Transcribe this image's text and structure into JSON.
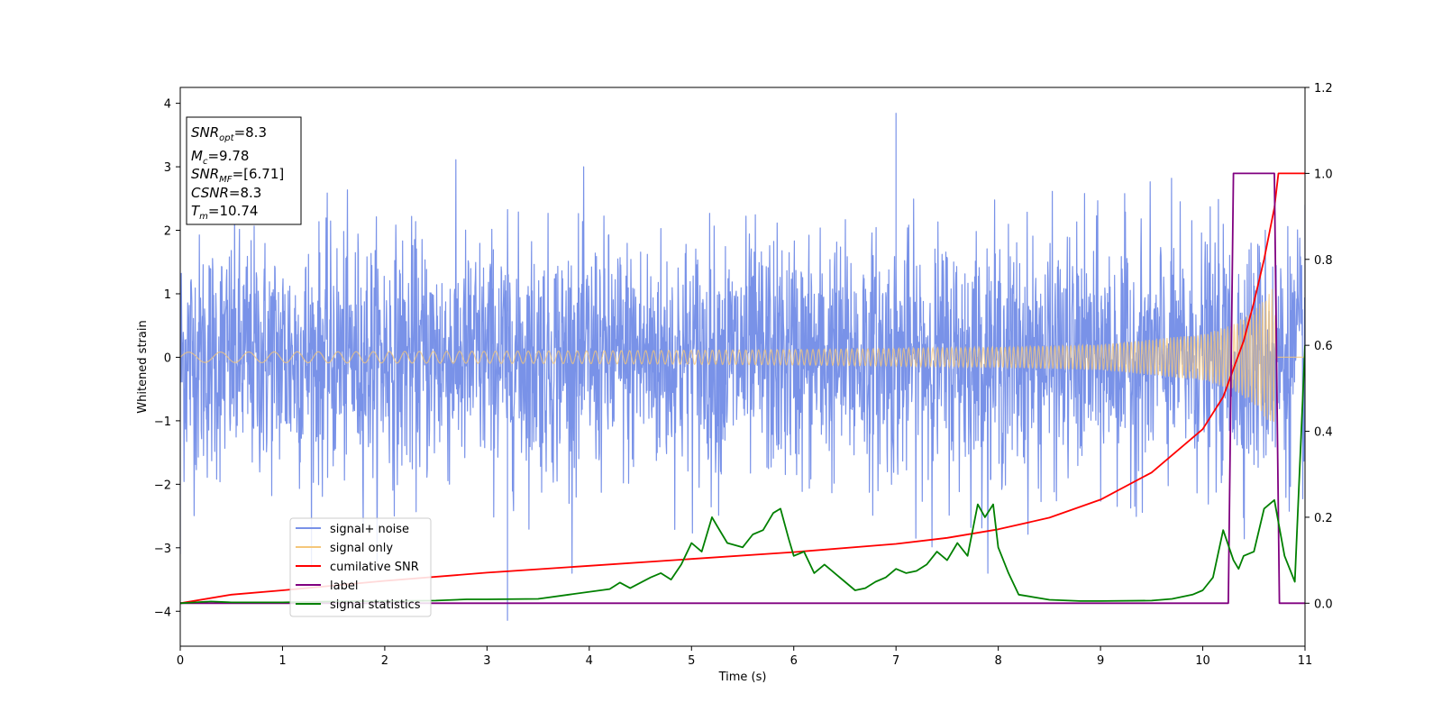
{
  "chart_data": {
    "type": "line",
    "xlabel": "Time (s)",
    "ylabel": "Whitened strain",
    "xlim": [
      0,
      11
    ],
    "ylim": [
      -4.55,
      4.25
    ],
    "y2lim": [
      -0.1,
      1.2
    ],
    "x_ticks": [
      "0",
      "1",
      "2",
      "3",
      "4",
      "5",
      "6",
      "7",
      "8",
      "9",
      "10",
      "11"
    ],
    "y_ticks": [
      "4",
      "3",
      "2",
      "1",
      "0",
      "−1",
      "−2",
      "−3",
      "−4"
    ],
    "y2_ticks": [
      "1.2",
      "1.0",
      "0.8",
      "0.6",
      "0.4",
      "0.2",
      "0.0"
    ],
    "legend_placement": "lower-left",
    "info_box": [
      {
        "main": "SNR",
        "sub": "opt",
        "rest": "=8.3"
      },
      {
        "main": "M",
        "sub": "c",
        "rest": "=9.78"
      },
      {
        "main": "SNR",
        "sub": "MF",
        "rest": "=[6.71]"
      },
      {
        "main": "CSNR",
        "sub": "",
        "rest": "=8.3"
      },
      {
        "main": "T",
        "sub": "m",
        "rest": "=10.74"
      }
    ],
    "series": [
      {
        "name": "signal+ noise",
        "color": "#7992e8",
        "axis": "left",
        "description_points": {
          "x": [
            0,
            3.2,
            7.0,
            11
          ],
          "y": [
            -3.1,
            -4.15,
            3.85,
            2.4
          ]
        }
      },
      {
        "name": "signal only",
        "color": "#f5c77a",
        "axis": "left",
        "envelope": {
          "x": [
            0,
            4,
            6,
            8,
            9,
            10,
            10.3,
            10.5,
            10.7,
            10.72,
            11
          ],
          "amp": [
            0.04,
            0.05,
            0.06,
            0.08,
            0.1,
            0.18,
            0.26,
            0.37,
            0.56,
            0.0,
            0.0
          ]
        }
      },
      {
        "name": "cumilative SNR",
        "color": "#ff0000",
        "axis": "right",
        "x": [
          0,
          0.5,
          1,
          2,
          3,
          4,
          5,
          6,
          7,
          7.5,
          8,
          8.5,
          9,
          9.5,
          10,
          10.2,
          10.4,
          10.5,
          10.6,
          10.7,
          10.74,
          10.8,
          11
        ],
        "y": [
          0.0,
          0.02,
          0.03,
          0.052,
          0.071,
          0.087,
          0.103,
          0.119,
          0.138,
          0.152,
          0.172,
          0.199,
          0.241,
          0.304,
          0.405,
          0.48,
          0.61,
          0.7,
          0.8,
          0.92,
          1.0,
          1.0,
          1.0
        ]
      },
      {
        "name": "label",
        "color": "#800080",
        "axis": "right",
        "x": [
          0,
          10.25,
          10.3,
          10.7,
          10.75,
          11
        ],
        "y": [
          0.0,
          0.0,
          1.0,
          1.0,
          0.0,
          0.0
        ]
      },
      {
        "name": "signal statistics",
        "color": "#008000",
        "axis": "right",
        "x": [
          0,
          0.3,
          0.5,
          1,
          1.5,
          2,
          2.5,
          2.8,
          3,
          3.5,
          3.8,
          4.2,
          4.3,
          4.4,
          4.6,
          4.7,
          4.8,
          4.9,
          5.0,
          5.1,
          5.2,
          5.25,
          5.35,
          5.5,
          5.6,
          5.7,
          5.8,
          5.87,
          5.95,
          6.0,
          6.1,
          6.2,
          6.3,
          6.4,
          6.5,
          6.6,
          6.7,
          6.8,
          6.9,
          7.0,
          7.1,
          7.2,
          7.3,
          7.4,
          7.5,
          7.6,
          7.7,
          7.8,
          7.87,
          7.95,
          8.0,
          8.1,
          8.2,
          8.5,
          8.8,
          9.0,
          9.5,
          9.7,
          9.9,
          10.0,
          10.1,
          10.2,
          10.3,
          10.35,
          10.4,
          10.5,
          10.6,
          10.7,
          10.8,
          10.9,
          11.0
        ],
        "y": [
          0.0,
          0.004,
          0.002,
          0.002,
          0.004,
          0.005,
          0.006,
          0.009,
          0.009,
          0.01,
          0.02,
          0.033,
          0.048,
          0.035,
          0.06,
          0.07,
          0.055,
          0.09,
          0.14,
          0.12,
          0.2,
          0.18,
          0.14,
          0.13,
          0.16,
          0.17,
          0.21,
          0.22,
          0.15,
          0.11,
          0.12,
          0.07,
          0.09,
          0.07,
          0.05,
          0.03,
          0.035,
          0.05,
          0.06,
          0.08,
          0.07,
          0.075,
          0.09,
          0.12,
          0.1,
          0.14,
          0.11,
          0.23,
          0.2,
          0.23,
          0.13,
          0.07,
          0.02,
          0.008,
          0.005,
          0.005,
          0.006,
          0.01,
          0.02,
          0.03,
          0.06,
          0.17,
          0.1,
          0.08,
          0.11,
          0.12,
          0.22,
          0.24,
          0.11,
          0.05,
          0.6
        ]
      }
    ]
  }
}
